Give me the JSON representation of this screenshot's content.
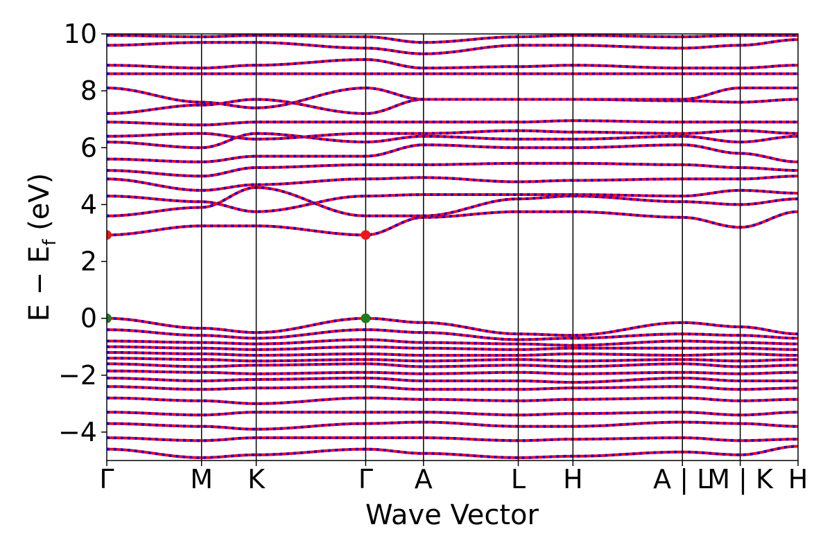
{
  "chart_data": {
    "type": "line",
    "title": "",
    "xlabel": "Wave Vector",
    "ylabel": "E − E_f (eV)",
    "ylabel_parts": {
      "main": "E − E",
      "sub": "f",
      "unit": " (eV)"
    },
    "ylim": [
      -5,
      10
    ],
    "yticks": [
      -4,
      -2,
      0,
      2,
      4,
      6,
      8,
      10
    ],
    "ytick_labels": [
      "−4",
      "−2",
      "0",
      "2",
      "4",
      "6",
      "8",
      "10"
    ],
    "kpath": [
      {
        "label": "Γ",
        "k": 0.0
      },
      {
        "label": "M",
        "k": 1.0
      },
      {
        "label": "K",
        "k": 1.577
      },
      {
        "label": "Γ",
        "k": 2.732
      },
      {
        "label": "A",
        "k": 3.342
      },
      {
        "label": "L",
        "k": 4.342
      },
      {
        "label": "H",
        "k": 4.919
      },
      {
        "label": "A | L",
        "k": 6.074
      },
      {
        "label": "M | K",
        "k": 6.684
      },
      {
        "label": "H",
        "k": 7.294
      }
    ],
    "grid": false,
    "series_style": {
      "up_color": "#ff0000",
      "down_color": "#0000ff",
      "dash": "dashed blue over solid red"
    },
    "markers": [
      {
        "k": 0.0,
        "E": 2.93,
        "color": "#e41a1c",
        "name": "CBM"
      },
      {
        "k": 2.732,
        "E": 2.93,
        "color": "#e41a1c",
        "name": "CBM"
      },
      {
        "k": 0.0,
        "E": 0.0,
        "color": "#1e7b1e",
        "name": "VBM"
      },
      {
        "k": 2.732,
        "E": 0.0,
        "color": "#1e7b1e",
        "name": "VBM"
      }
    ],
    "bands": [
      {
        "name": "",
        "E": [
          0.0,
          -0.35,
          -0.5,
          0.0,
          -0.15,
          -0.55,
          -0.6,
          -0.15,
          -0.3,
          -0.55
        ]
      },
      {
        "name": "",
        "E": [
          -0.4,
          -0.6,
          -0.7,
          -0.4,
          -0.5,
          -0.75,
          -0.7,
          -0.55,
          -0.6,
          -0.7
        ]
      },
      {
        "name": "",
        "E": [
          -0.8,
          -0.85,
          -0.9,
          -0.75,
          -0.85,
          -0.9,
          -0.95,
          -0.8,
          -0.85,
          -0.9
        ]
      },
      {
        "name": "",
        "E": [
          -1.0,
          -1.05,
          -1.1,
          -1.0,
          -1.05,
          -1.1,
          -1.05,
          -1.05,
          -1.05,
          -1.1
        ]
      },
      {
        "name": "",
        "E": [
          -1.2,
          -1.25,
          -1.3,
          -1.25,
          -1.3,
          -1.3,
          -1.25,
          -1.3,
          -1.25,
          -1.3
        ]
      },
      {
        "name": "",
        "E": [
          -1.4,
          -1.45,
          -1.5,
          -1.45,
          -1.5,
          -1.45,
          -1.5,
          -1.45,
          -1.5,
          -1.45
        ]
      },
      {
        "name": "",
        "E": [
          -1.6,
          -1.7,
          -1.65,
          -1.6,
          -1.7,
          -1.65,
          -1.7,
          -1.6,
          -1.7,
          -1.65
        ]
      },
      {
        "name": "",
        "E": [
          -1.85,
          -1.9,
          -1.95,
          -1.9,
          -1.95,
          -1.9,
          -1.95,
          -1.9,
          -1.95,
          -1.9
        ]
      },
      {
        "name": "",
        "E": [
          -2.1,
          -2.2,
          -2.15,
          -2.1,
          -2.2,
          -2.2,
          -2.25,
          -2.1,
          -2.2,
          -2.2
        ]
      },
      {
        "name": "",
        "E": [
          -2.4,
          -2.5,
          -2.45,
          -2.4,
          -2.5,
          -2.5,
          -2.45,
          -2.4,
          -2.5,
          -2.45
        ]
      },
      {
        "name": "",
        "E": [
          -2.8,
          -2.9,
          -3.0,
          -2.8,
          -2.85,
          -2.9,
          -2.85,
          -2.8,
          -2.9,
          -2.85
        ]
      },
      {
        "name": "",
        "E": [
          -3.3,
          -3.4,
          -3.3,
          -3.3,
          -3.3,
          -3.4,
          -3.35,
          -3.3,
          -3.4,
          -3.3
        ]
      },
      {
        "name": "",
        "E": [
          -3.7,
          -3.8,
          -3.9,
          -3.7,
          -3.65,
          -3.8,
          -3.8,
          -3.65,
          -3.7,
          -3.8
        ]
      },
      {
        "name": "",
        "E": [
          -4.2,
          -4.3,
          -4.2,
          -4.2,
          -4.2,
          -4.3,
          -4.25,
          -4.2,
          -4.3,
          -4.25
        ]
      },
      {
        "name": "",
        "E": [
          -4.6,
          -4.9,
          -4.8,
          -4.6,
          -4.75,
          -4.9,
          -4.85,
          -4.7,
          -4.8,
          -4.5
        ]
      },
      {
        "name": "",
        "E": [
          2.93,
          3.25,
          3.25,
          2.93,
          3.55,
          3.75,
          3.75,
          3.55,
          3.2,
          3.75
        ]
      },
      {
        "name": "",
        "E": [
          3.6,
          3.9,
          4.6,
          3.6,
          3.6,
          4.2,
          4.3,
          4.1,
          4.0,
          4.2
        ]
      },
      {
        "name": "",
        "E": [
          4.3,
          4.1,
          3.75,
          4.3,
          4.35,
          4.35,
          4.35,
          4.3,
          4.5,
          4.4
        ]
      },
      {
        "name": "",
        "E": [
          4.9,
          4.5,
          4.7,
          4.9,
          4.95,
          4.8,
          4.85,
          4.9,
          4.9,
          5.0
        ]
      },
      {
        "name": "",
        "E": [
          5.2,
          5.0,
          5.3,
          5.4,
          5.4,
          5.45,
          5.45,
          5.4,
          5.3,
          5.2
        ]
      },
      {
        "name": "",
        "E": [
          5.6,
          5.5,
          5.7,
          5.7,
          6.1,
          6.0,
          6.0,
          6.1,
          5.8,
          5.5
        ]
      },
      {
        "name": "",
        "E": [
          6.2,
          6.0,
          6.5,
          6.2,
          6.4,
          6.3,
          6.3,
          6.4,
          6.2,
          6.4
        ]
      },
      {
        "name": "",
        "E": [
          6.4,
          6.5,
          6.3,
          6.5,
          6.5,
          6.6,
          6.55,
          6.5,
          6.6,
          6.5
        ]
      },
      {
        "name": "",
        "E": [
          6.9,
          6.8,
          6.9,
          6.9,
          6.9,
          6.9,
          6.95,
          6.9,
          6.9,
          6.9
        ]
      },
      {
        "name": "",
        "E": [
          7.2,
          7.5,
          7.7,
          7.2,
          7.7,
          7.7,
          7.7,
          7.65,
          7.6,
          7.7
        ]
      },
      {
        "name": "",
        "E": [
          8.1,
          7.6,
          7.4,
          8.1,
          7.7,
          7.7,
          7.7,
          7.7,
          8.1,
          8.1
        ]
      },
      {
        "name": "",
        "E": [
          8.6,
          8.6,
          8.6,
          8.6,
          8.6,
          8.6,
          8.6,
          8.6,
          8.6,
          8.6
        ]
      },
      {
        "name": "",
        "E": [
          8.9,
          8.8,
          8.9,
          9.1,
          8.8,
          8.85,
          8.9,
          8.8,
          8.8,
          8.9
        ]
      },
      {
        "name": "",
        "E": [
          9.6,
          9.7,
          9.7,
          9.5,
          9.3,
          9.6,
          9.6,
          9.5,
          9.6,
          9.8
        ]
      },
      {
        "name": "",
        "E": [
          9.95,
          9.9,
          9.95,
          9.9,
          9.7,
          9.9,
          9.95,
          9.9,
          9.95,
          9.95
        ]
      }
    ]
  }
}
